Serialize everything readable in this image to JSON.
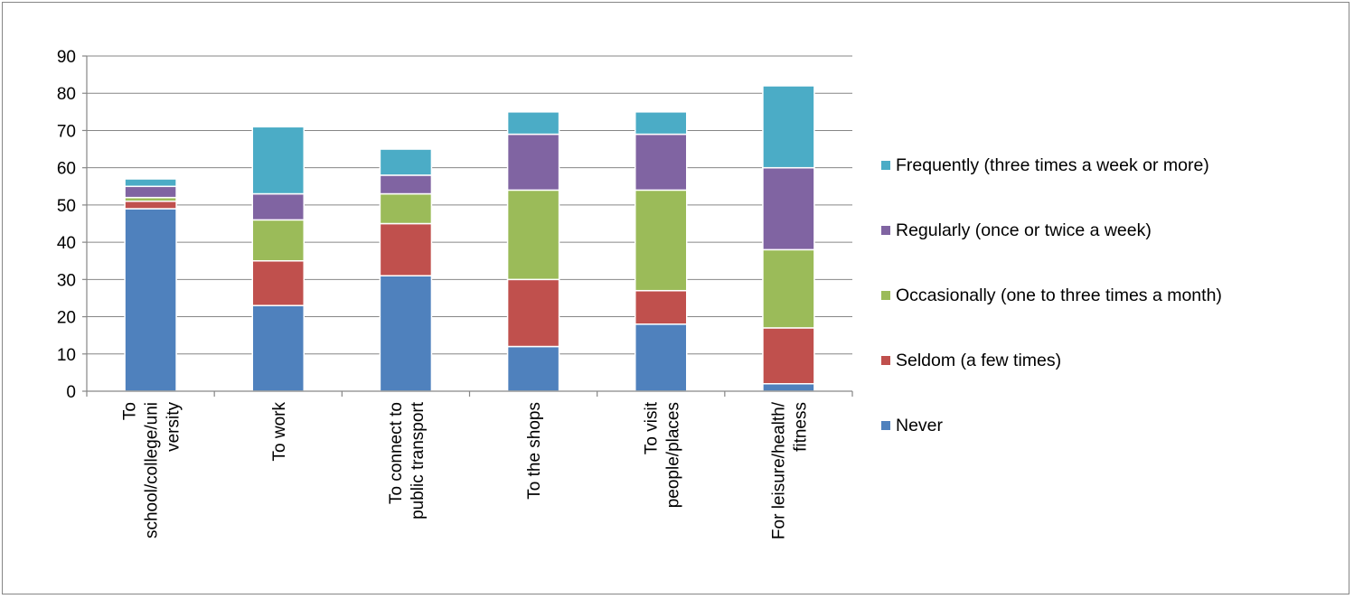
{
  "chart_data": {
    "type": "bar",
    "stacked": true,
    "title": "",
    "xlabel": "",
    "ylabel": "",
    "ylim": [
      0,
      90
    ],
    "yticks": [
      0,
      10,
      20,
      30,
      40,
      50,
      60,
      70,
      80,
      90
    ],
    "grid": true,
    "legend_position": "right",
    "categories": [
      [
        "To",
        "school/college/uni",
        "versity"
      ],
      [
        "To work"
      ],
      [
        "To connect to",
        "public transport"
      ],
      [
        "To the shops"
      ],
      [
        "To visit",
        "people/places"
      ],
      [
        "For leisure/health/",
        "fitness"
      ]
    ],
    "series": [
      {
        "name": "Never",
        "color": "#4F81BD",
        "values": [
          49,
          23,
          31,
          12,
          18,
          2
        ]
      },
      {
        "name": "Seldom (a few times)",
        "color": "#C0504D",
        "values": [
          2,
          12,
          14,
          18,
          9,
          15
        ]
      },
      {
        "name": "Occasionally (one to three times a month)",
        "color": "#9BBB59",
        "values": [
          1,
          11,
          8,
          24,
          27,
          21
        ]
      },
      {
        "name": "Regularly (once or twice a week)",
        "color": "#8064A2",
        "values": [
          3,
          7,
          5,
          15,
          15,
          22
        ]
      },
      {
        "name": "Frequently (three times a week or more)",
        "color": "#4BACC6",
        "values": [
          2,
          18,
          7,
          6,
          6,
          22
        ]
      }
    ],
    "legend_order": [
      4,
      3,
      2,
      1,
      0
    ]
  },
  "colors": {
    "gridline": "#868686",
    "axis": "#868686",
    "border": "#868686"
  }
}
